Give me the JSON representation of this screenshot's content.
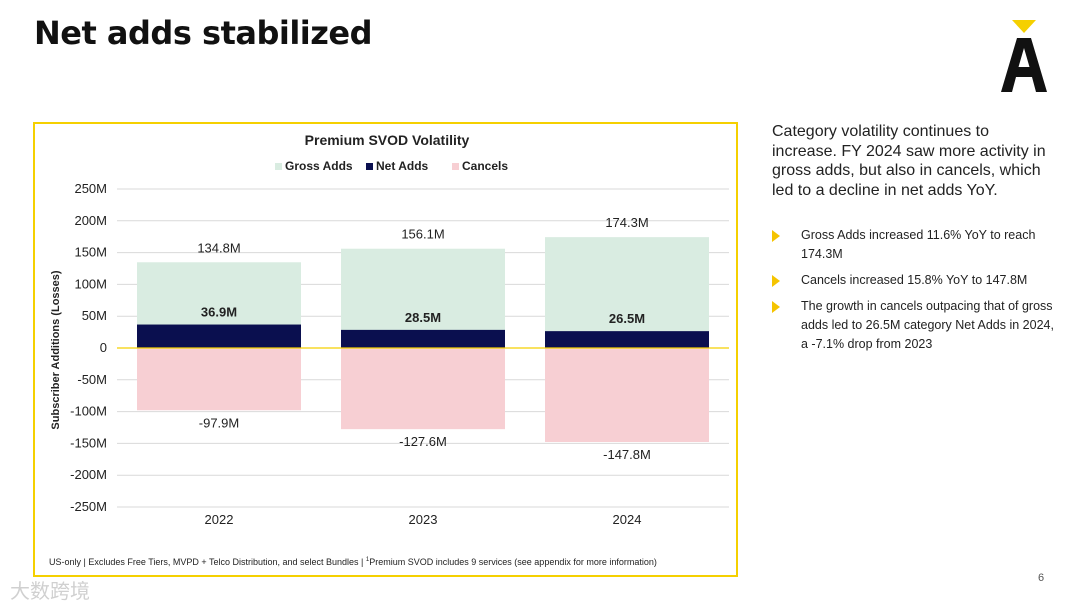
{
  "page": {
    "title": "Net adds stabilized",
    "page_number": "6",
    "watermark": "大数跨境",
    "brand_color": "#f5d000"
  },
  "chart_data": {
    "type": "bar",
    "title": "Premium SVOD Volatility",
    "ylabel": "Subscriber Additions (Losses)",
    "xlabel": "",
    "categories": [
      "2022",
      "2023",
      "2024"
    ],
    "series": [
      {
        "name": "Gross Adds",
        "values": [
          134.8,
          156.1,
          174.3
        ],
        "labels": [
          "134.8M",
          "156.1M",
          "174.3M"
        ],
        "color": "#d9ece1"
      },
      {
        "name": "Net Adds",
        "values": [
          36.9,
          28.5,
          26.5
        ],
        "labels": [
          "36.9M",
          "28.5M",
          "26.5M"
        ],
        "color": "#0a0f4f"
      },
      {
        "name": "Cancels",
        "values": [
          -97.9,
          -127.6,
          -147.8
        ],
        "labels": [
          "-97.9M",
          "-127.6M",
          "-147.8M"
        ],
        "color": "#f7cfd3"
      }
    ],
    "ylim": [
      -250,
      250
    ],
    "yticks": [
      250,
      200,
      150,
      100,
      50,
      0,
      -50,
      -100,
      -150,
      -200,
      -250
    ],
    "ytick_labels": [
      "250M",
      "200M",
      "150M",
      "100M",
      "50M",
      "0",
      "-50M",
      "-100M",
      "-150M",
      "-200M",
      "-250M"
    ],
    "grid": true,
    "zero_line_color": "#f5d000",
    "legend": "top"
  },
  "footnote": {
    "text_before": "US-only | Excludes Free Tiers, MVPD + Telco Distribution, and select Bundles | ",
    "sup": "1",
    "text_after": "Premium SVOD includes 9 services (see appendix for more information)"
  },
  "sidebar": {
    "lead": "Category volatility continues to increase. FY 2024 saw more activity in gross adds, but also in cancels, which led to a decline in net adds YoY.",
    "bullets": [
      "Gross Adds increased 11.6% YoY to reach 174.3M",
      "Cancels increased 15.8% YoY to 147.8M",
      "The growth in cancels outpacing that of gross adds led to 26.5M category Net Adds in 2024, a -7.1% drop from 2023"
    ]
  }
}
